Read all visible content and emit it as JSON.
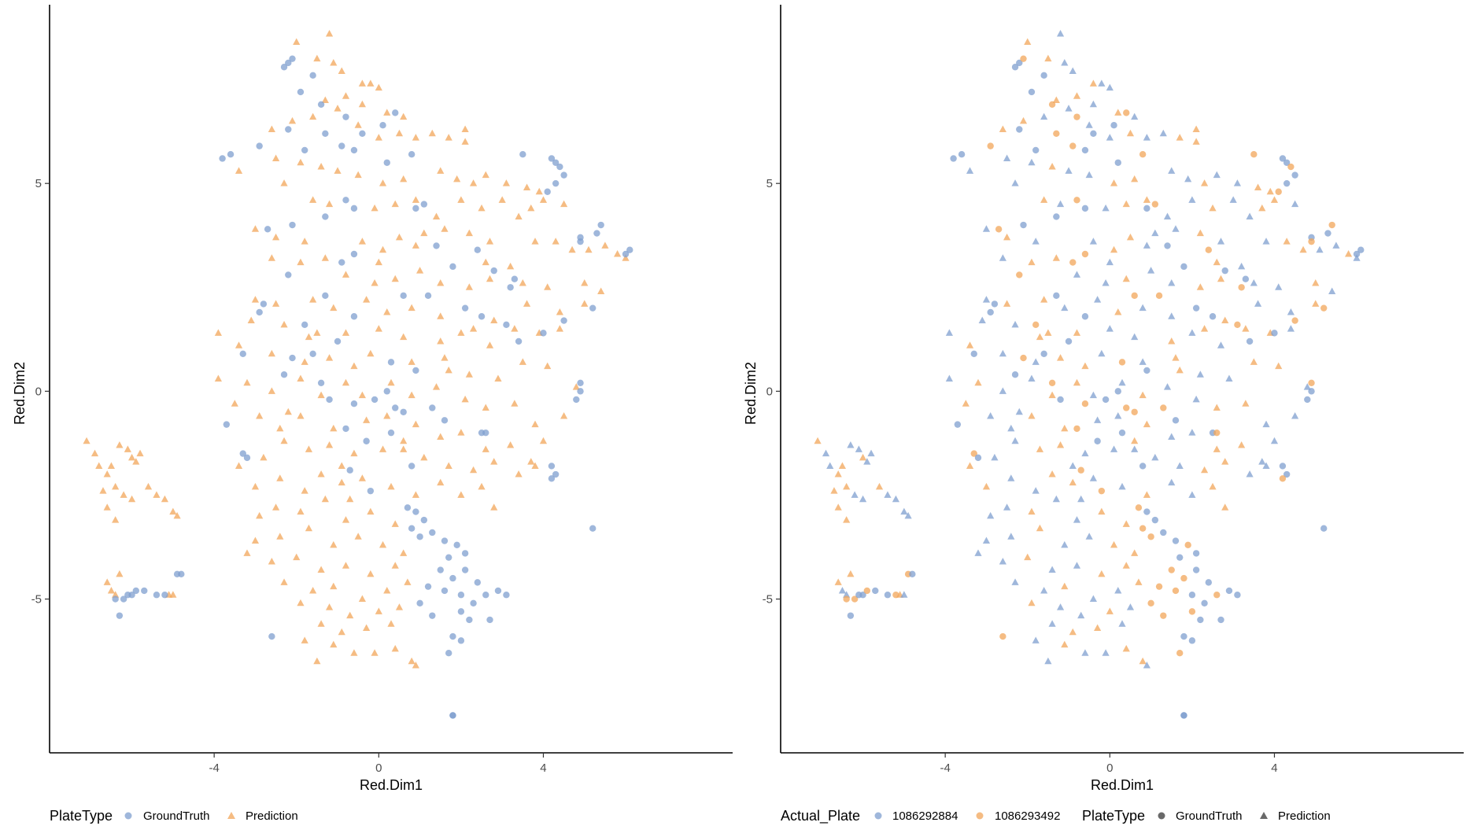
{
  "colors": {
    "blue": "#7f9fcf",
    "orange": "#f2a55a",
    "dark_gray": "#4f4f4f",
    "axis": "#000000"
  },
  "chart_data": [
    {
      "type": "scatter",
      "xlabel": "Red.Dim1",
      "ylabel": "Red.Dim2",
      "xlim": [
        -8,
        8.6
      ],
      "ylim": [
        -8.7,
        9.3
      ],
      "xticks": [
        -4,
        0,
        4
      ],
      "yticks": [
        -5,
        0,
        5
      ],
      "grid": false,
      "color_by": "PlateType",
      "shape_by": "PlateType",
      "legend": {
        "placement": "bottom-left",
        "groups": [
          {
            "title": "PlateType",
            "entries": [
              {
                "label": "GroundTruth",
                "shape": "circle",
                "color": "blue"
              },
              {
                "label": "Prediction",
                "shape": "triangle",
                "color": "orange"
              }
            ]
          }
        ]
      }
    },
    {
      "type": "scatter",
      "xlabel": "Red.Dim1",
      "ylabel": "Red.Dim2",
      "xlim": [
        -8,
        8.6
      ],
      "ylim": [
        -8.7,
        9.3
      ],
      "xticks": [
        -4,
        0,
        4
      ],
      "yticks": [
        -5,
        0,
        5
      ],
      "grid": false,
      "color_by": "Actual_Plate",
      "shape_by": "PlateType",
      "legend": {
        "placement": "bottom-left",
        "groups": [
          {
            "title": "Actual_Plate",
            "entries": [
              {
                "label": "1086292884",
                "shape": "circle",
                "color": "blue"
              },
              {
                "label": "1086293492",
                "shape": "circle",
                "color": "orange"
              }
            ]
          },
          {
            "title": "PlateType",
            "entries": [
              {
                "label": "GroundTruth",
                "shape": "circle",
                "color": "dark_gray"
              },
              {
                "label": "Prediction",
                "shape": "triangle",
                "color": "dark_gray"
              }
            ]
          }
        ]
      }
    }
  ],
  "points": {
    "ground_truth": [
      [
        -2.3,
        7.8
      ],
      [
        -2.2,
        7.9
      ],
      [
        -2.1,
        8.0
      ],
      [
        -1.9,
        7.2
      ],
      [
        -1.6,
        7.6
      ],
      [
        -1.4,
        6.9
      ],
      [
        -0.8,
        6.6
      ],
      [
        -0.4,
        6.2
      ],
      [
        0.1,
        6.4
      ],
      [
        0.4,
        6.7
      ],
      [
        -2.2,
        6.3
      ],
      [
        -1.8,
        5.8
      ],
      [
        -1.3,
        6.2
      ],
      [
        -2.9,
        5.9
      ],
      [
        -3.6,
        5.7
      ],
      [
        -3.8,
        5.6
      ],
      [
        -0.9,
        5.9
      ],
      [
        -0.6,
        5.8
      ],
      [
        0.2,
        5.5
      ],
      [
        0.8,
        5.7
      ],
      [
        3.5,
        5.7
      ],
      [
        4.2,
        5.6
      ],
      [
        4.3,
        5.5
      ],
      [
        4.4,
        5.4
      ],
      [
        4.5,
        5.2
      ],
      [
        4.3,
        5.0
      ],
      [
        4.1,
        4.8
      ],
      [
        -0.8,
        4.6
      ],
      [
        -0.6,
        4.4
      ],
      [
        0.9,
        4.4
      ],
      [
        1.1,
        4.5
      ],
      [
        -1.3,
        4.2
      ],
      [
        -2.1,
        4.0
      ],
      [
        -2.7,
        3.9
      ],
      [
        5.4,
        4.0
      ],
      [
        5.3,
        3.8
      ],
      [
        4.9,
        3.7
      ],
      [
        4.9,
        3.6
      ],
      [
        6.1,
        3.4
      ],
      [
        6.0,
        3.3
      ],
      [
        -0.6,
        3.3
      ],
      [
        -0.9,
        3.1
      ],
      [
        1.4,
        3.5
      ],
      [
        1.8,
        3.0
      ],
      [
        2.4,
        3.4
      ],
      [
        2.8,
        2.9
      ],
      [
        3.3,
        2.7
      ],
      [
        3.2,
        2.5
      ],
      [
        -2.2,
        2.8
      ],
      [
        -2.8,
        2.1
      ],
      [
        -2.9,
        1.9
      ],
      [
        -1.8,
        1.6
      ],
      [
        -0.6,
        1.8
      ],
      [
        -1.3,
        2.3
      ],
      [
        0.6,
        2.3
      ],
      [
        1.2,
        2.3
      ],
      [
        2.1,
        2.0
      ],
      [
        2.5,
        1.8
      ],
      [
        3.1,
        1.6
      ],
      [
        3.4,
        1.2
      ],
      [
        4.0,
        1.4
      ],
      [
        4.5,
        1.7
      ],
      [
        5.2,
        2.0
      ],
      [
        -1.0,
        1.2
      ],
      [
        -1.6,
        0.9
      ],
      [
        -2.1,
        0.8
      ],
      [
        -3.3,
        0.9
      ],
      [
        -2.3,
        0.4
      ],
      [
        -1.4,
        0.2
      ],
      [
        0.3,
        0.7
      ],
      [
        0.9,
        0.5
      ],
      [
        -1.2,
        -0.2
      ],
      [
        -0.6,
        -0.3
      ],
      [
        -0.1,
        -0.2
      ],
      [
        0.2,
        0.0
      ],
      [
        0.6,
        -0.5
      ],
      [
        1.3,
        -0.4
      ],
      [
        1.6,
        -0.7
      ],
      [
        -3.7,
        -0.8
      ],
      [
        -0.8,
        -0.9
      ],
      [
        -0.3,
        -1.2
      ],
      [
        0.3,
        -1.0
      ],
      [
        -3.3,
        -1.5
      ],
      [
        -0.7,
        -1.9
      ],
      [
        0.8,
        -1.8
      ],
      [
        2.5,
        -1.0
      ],
      [
        2.6,
        -1.0
      ],
      [
        4.2,
        -1.8
      ],
      [
        4.3,
        -2.0
      ],
      [
        4.2,
        -2.1
      ],
      [
        4.9,
        0.2
      ],
      [
        4.9,
        0.0
      ],
      [
        4.8,
        -0.2
      ],
      [
        0.7,
        -2.8
      ],
      [
        0.9,
        -2.9
      ],
      [
        1.1,
        -3.1
      ],
      [
        0.8,
        -3.3
      ],
      [
        1.0,
        -3.5
      ],
      [
        1.3,
        -3.4
      ],
      [
        1.6,
        -3.6
      ],
      [
        1.9,
        -3.7
      ],
      [
        2.1,
        -3.9
      ],
      [
        1.7,
        -4.0
      ],
      [
        1.5,
        -4.3
      ],
      [
        1.8,
        -4.5
      ],
      [
        2.1,
        -4.3
      ],
      [
        2.4,
        -4.6
      ],
      [
        2.6,
        -4.9
      ],
      [
        2.9,
        -4.8
      ],
      [
        3.1,
        -4.9
      ],
      [
        1.2,
        -4.7
      ],
      [
        1.6,
        -4.8
      ],
      [
        2.0,
        -4.9
      ],
      [
        2.3,
        -5.1
      ],
      [
        2.0,
        -5.3
      ],
      [
        2.2,
        -5.5
      ],
      [
        2.7,
        -5.5
      ],
      [
        1.0,
        -5.1
      ],
      [
        1.3,
        -5.4
      ],
      [
        1.8,
        -5.9
      ],
      [
        2.0,
        -6.0
      ],
      [
        1.7,
        -6.3
      ],
      [
        1.8,
        -7.8
      ],
      [
        1.8,
        -7.8
      ],
      [
        -6.4,
        -5.0
      ],
      [
        -6.2,
        -5.0
      ],
      [
        -6.1,
        -4.9
      ],
      [
        -6.0,
        -4.9
      ],
      [
        -5.9,
        -4.8
      ],
      [
        -5.7,
        -4.8
      ],
      [
        -5.4,
        -4.9
      ],
      [
        -5.2,
        -4.9
      ],
      [
        -4.9,
        -4.4
      ],
      [
        -4.8,
        -4.4
      ],
      [
        -6.3,
        -5.4
      ],
      [
        -2.6,
        -5.9
      ],
      [
        5.2,
        -3.3
      ],
      [
        -3.2,
        -1.6
      ],
      [
        0.4,
        -0.4
      ],
      [
        -0.2,
        -2.4
      ]
    ],
    "prediction": [
      [
        -1.2,
        8.6
      ],
      [
        -2.0,
        8.4
      ],
      [
        -1.5,
        8.0
      ],
      [
        -1.1,
        7.9
      ],
      [
        -0.9,
        7.7
      ],
      [
        -0.4,
        7.4
      ],
      [
        -0.2,
        7.4
      ],
      [
        0.0,
        7.3
      ],
      [
        -0.8,
        7.1
      ],
      [
        -1.3,
        7.0
      ],
      [
        -1.0,
        6.8
      ],
      [
        -0.4,
        6.9
      ],
      [
        0.2,
        6.7
      ],
      [
        0.6,
        6.6
      ],
      [
        -1.6,
        6.6
      ],
      [
        -2.1,
        6.5
      ],
      [
        -2.6,
        6.3
      ],
      [
        -0.5,
        6.4
      ],
      [
        0.0,
        6.1
      ],
      [
        0.5,
        6.2
      ],
      [
        0.9,
        6.1
      ],
      [
        1.3,
        6.2
      ],
      [
        1.7,
        6.1
      ],
      [
        2.1,
        6.0
      ],
      [
        -1.9,
        5.5
      ],
      [
        -2.5,
        5.6
      ],
      [
        -1.4,
        5.4
      ],
      [
        -1.0,
        5.3
      ],
      [
        -0.5,
        5.2
      ],
      [
        0.1,
        5.0
      ],
      [
        0.6,
        5.1
      ],
      [
        1.5,
        5.3
      ],
      [
        1.9,
        5.1
      ],
      [
        2.3,
        5.0
      ],
      [
        2.6,
        5.2
      ],
      [
        3.1,
        5.0
      ],
      [
        3.6,
        4.9
      ],
      [
        3.9,
        4.8
      ],
      [
        -3.4,
        5.3
      ],
      [
        -2.3,
        5.0
      ],
      [
        -1.6,
        4.6
      ],
      [
        -1.2,
        4.5
      ],
      [
        -0.1,
        4.4
      ],
      [
        0.4,
        4.5
      ],
      [
        0.9,
        4.6
      ],
      [
        1.4,
        4.2
      ],
      [
        2.0,
        4.6
      ],
      [
        2.5,
        4.4
      ],
      [
        3.0,
        4.6
      ],
      [
        3.4,
        4.2
      ],
      [
        3.7,
        4.4
      ],
      [
        4.0,
        4.6
      ],
      [
        4.5,
        4.5
      ],
      [
        -3.0,
        3.9
      ],
      [
        -2.5,
        3.7
      ],
      [
        -1.8,
        3.6
      ],
      [
        -0.4,
        3.6
      ],
      [
        0.1,
        3.4
      ],
      [
        0.5,
        3.7
      ],
      [
        1.1,
        3.8
      ],
      [
        1.6,
        3.9
      ],
      [
        2.2,
        3.8
      ],
      [
        2.7,
        3.6
      ],
      [
        3.8,
        3.6
      ],
      [
        4.3,
        3.6
      ],
      [
        4.7,
        3.4
      ],
      [
        5.1,
        3.4
      ],
      [
        5.5,
        3.5
      ],
      [
        5.8,
        3.3
      ],
      [
        6.0,
        3.2
      ],
      [
        -2.6,
        3.2
      ],
      [
        -1.9,
        3.1
      ],
      [
        -1.3,
        3.2
      ],
      [
        -0.8,
        2.8
      ],
      [
        0.0,
        3.1
      ],
      [
        0.4,
        2.7
      ],
      [
        1.0,
        2.9
      ],
      [
        1.5,
        2.6
      ],
      [
        2.2,
        2.5
      ],
      [
        2.7,
        2.7
      ],
      [
        3.5,
        2.6
      ],
      [
        4.1,
        2.5
      ],
      [
        5.0,
        2.6
      ],
      [
        5.4,
        2.4
      ],
      [
        -3.0,
        2.2
      ],
      [
        -2.5,
        2.1
      ],
      [
        -1.6,
        2.2
      ],
      [
        -1.1,
        2.0
      ],
      [
        -0.3,
        2.2
      ],
      [
        0.2,
        1.9
      ],
      [
        0.8,
        2.0
      ],
      [
        1.5,
        1.8
      ],
      [
        2.3,
        1.5
      ],
      [
        2.8,
        1.7
      ],
      [
        3.6,
        2.1
      ],
      [
        4.4,
        1.9
      ],
      [
        5.0,
        2.1
      ],
      [
        -3.1,
        1.7
      ],
      [
        -2.3,
        1.6
      ],
      [
        -1.7,
        1.3
      ],
      [
        -0.8,
        1.4
      ],
      [
        0.0,
        1.5
      ],
      [
        0.6,
        1.3
      ],
      [
        1.5,
        1.2
      ],
      [
        2.0,
        1.4
      ],
      [
        2.7,
        1.1
      ],
      [
        3.3,
        1.5
      ],
      [
        3.9,
        1.4
      ],
      [
        4.4,
        1.5
      ],
      [
        -3.9,
        1.4
      ],
      [
        -3.4,
        1.1
      ],
      [
        -2.6,
        0.9
      ],
      [
        -1.8,
        0.7
      ],
      [
        -1.2,
        0.8
      ],
      [
        -0.6,
        0.6
      ],
      [
        -0.2,
        0.9
      ],
      [
        0.8,
        0.7
      ],
      [
        1.6,
        0.8
      ],
      [
        2.2,
        0.4
      ],
      [
        2.9,
        0.3
      ],
      [
        3.5,
        0.7
      ],
      [
        4.1,
        0.6
      ],
      [
        4.8,
        0.1
      ],
      [
        -3.9,
        0.3
      ],
      [
        -3.2,
        0.2
      ],
      [
        -2.6,
        0.0
      ],
      [
        -1.9,
        0.3
      ],
      [
        -1.4,
        -0.1
      ],
      [
        -0.8,
        0.2
      ],
      [
        -0.4,
        -0.1
      ],
      [
        0.3,
        0.2
      ],
      [
        0.8,
        -0.1
      ],
      [
        1.4,
        0.1
      ],
      [
        2.1,
        -0.2
      ],
      [
        2.6,
        -0.4
      ],
      [
        3.3,
        -0.3
      ],
      [
        3.8,
        -0.8
      ],
      [
        4.5,
        -0.6
      ],
      [
        -3.5,
        -0.3
      ],
      [
        -2.9,
        -0.6
      ],
      [
        -2.4,
        -0.9
      ],
      [
        -1.9,
        -0.6
      ],
      [
        -1.1,
        -0.9
      ],
      [
        -0.3,
        -0.7
      ],
      [
        0.2,
        -0.6
      ],
      [
        0.9,
        -0.8
      ],
      [
        1.5,
        -1.1
      ],
      [
        2.0,
        -1.0
      ],
      [
        2.6,
        -1.4
      ],
      [
        3.2,
        -1.3
      ],
      [
        3.7,
        -1.7
      ],
      [
        4.0,
        -1.2
      ],
      [
        -3.4,
        -1.8
      ],
      [
        -2.8,
        -1.6
      ],
      [
        -2.3,
        -1.2
      ],
      [
        -1.7,
        -1.4
      ],
      [
        -1.2,
        -1.3
      ],
      [
        -0.6,
        -1.5
      ],
      [
        0.1,
        -1.4
      ],
      [
        0.6,
        -1.2
      ],
      [
        1.1,
        -1.6
      ],
      [
        1.7,
        -1.8
      ],
      [
        2.3,
        -1.9
      ],
      [
        2.8,
        -1.7
      ],
      [
        3.4,
        -2.0
      ],
      [
        3.8,
        -1.8
      ],
      [
        -3.0,
        -2.3
      ],
      [
        -2.4,
        -2.1
      ],
      [
        -1.8,
        -2.4
      ],
      [
        -1.4,
        -2.0
      ],
      [
        -0.9,
        -2.2
      ],
      [
        -0.4,
        -2.1
      ],
      [
        0.3,
        -2.3
      ],
      [
        0.9,
        -2.5
      ],
      [
        1.5,
        -2.2
      ],
      [
        2.0,
        -2.5
      ],
      [
        2.5,
        -2.3
      ],
      [
        2.8,
        -2.8
      ],
      [
        -2.9,
        -3.0
      ],
      [
        -2.5,
        -2.8
      ],
      [
        -1.9,
        -2.9
      ],
      [
        -1.3,
        -2.6
      ],
      [
        -0.8,
        -3.1
      ],
      [
        -0.2,
        -2.9
      ],
      [
        0.4,
        -3.2
      ],
      [
        -3.0,
        -3.6
      ],
      [
        -2.4,
        -3.5
      ],
      [
        -1.7,
        -3.3
      ],
      [
        -1.1,
        -3.7
      ],
      [
        -0.5,
        -3.5
      ],
      [
        0.1,
        -3.7
      ],
      [
        0.6,
        -3.9
      ],
      [
        -3.2,
        -3.9
      ],
      [
        -2.6,
        -4.1
      ],
      [
        -2.0,
        -4.0
      ],
      [
        -1.4,
        -4.3
      ],
      [
        -0.8,
        -4.2
      ],
      [
        -0.2,
        -4.4
      ],
      [
        0.4,
        -4.2
      ],
      [
        -2.3,
        -4.6
      ],
      [
        -1.6,
        -4.8
      ],
      [
        -1.1,
        -4.7
      ],
      [
        -0.4,
        -5.0
      ],
      [
        0.2,
        -4.8
      ],
      [
        0.7,
        -4.6
      ],
      [
        -1.9,
        -5.1
      ],
      [
        -1.2,
        -5.2
      ],
      [
        -0.7,
        -5.4
      ],
      [
        0.0,
        -5.3
      ],
      [
        0.5,
        -5.2
      ],
      [
        -1.4,
        -5.6
      ],
      [
        -0.9,
        -5.8
      ],
      [
        -0.3,
        -5.7
      ],
      [
        0.3,
        -5.6
      ],
      [
        -1.8,
        -6.0
      ],
      [
        -1.1,
        -6.1
      ],
      [
        -0.6,
        -6.3
      ],
      [
        -0.1,
        -6.3
      ],
      [
        0.4,
        -6.2
      ],
      [
        0.8,
        -6.5
      ],
      [
        -1.5,
        -6.5
      ],
      [
        0.9,
        -6.6
      ],
      [
        -7.1,
        -1.2
      ],
      [
        -6.9,
        -1.5
      ],
      [
        -6.8,
        -1.8
      ],
      [
        -6.6,
        -2.0
      ],
      [
        -6.5,
        -1.8
      ],
      [
        -6.3,
        -1.3
      ],
      [
        -6.1,
        -1.4
      ],
      [
        -6.0,
        -1.6
      ],
      [
        -5.9,
        -1.7
      ],
      [
        -5.8,
        -1.5
      ],
      [
        -6.7,
        -2.4
      ],
      [
        -6.4,
        -2.3
      ],
      [
        -6.2,
        -2.5
      ],
      [
        -6.0,
        -2.6
      ],
      [
        -5.6,
        -2.3
      ],
      [
        -5.4,
        -2.5
      ],
      [
        -5.2,
        -2.6
      ],
      [
        -6.6,
        -2.8
      ],
      [
        -6.4,
        -3.1
      ],
      [
        -5.0,
        -2.9
      ],
      [
        -4.9,
        -3.0
      ],
      [
        -6.6,
        -4.6
      ],
      [
        -6.5,
        -4.8
      ],
      [
        -6.4,
        -4.9
      ],
      [
        -6.3,
        -4.4
      ],
      [
        -5.1,
        -4.9
      ],
      [
        -5.0,
        -4.9
      ],
      [
        3.2,
        3.0
      ],
      [
        2.6,
        3.1
      ],
      [
        0.6,
        -1.4
      ],
      [
        -0.9,
        -1.8
      ],
      [
        1.7,
        0.5
      ],
      [
        -1.5,
        1.4
      ],
      [
        0.9,
        3.5
      ],
      [
        -0.1,
        2.6
      ],
      [
        2.1,
        6.3
      ],
      [
        -2.2,
        -0.5
      ],
      [
        -0.7,
        -2.6
      ]
    ]
  }
}
